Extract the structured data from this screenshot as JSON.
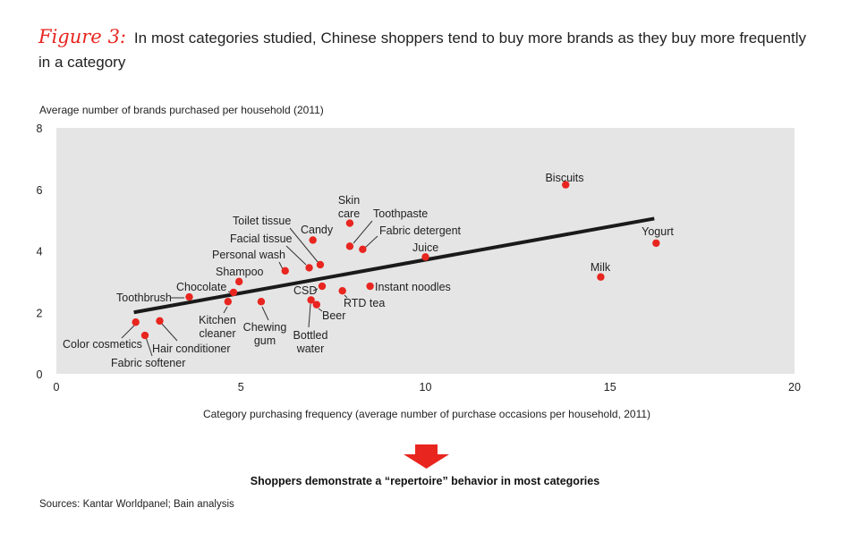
{
  "figure": {
    "label": "Figure 3:",
    "title": "In most categories studied, Chinese shoppers tend to buy more brands as they buy more frequently in a category"
  },
  "chart_data": {
    "type": "scatter",
    "ylabel": "Average number of brands purchased per household (2011)",
    "xlabel": "Category purchasing frequency (average number of purchase occasions per household, 2011)",
    "xlim": [
      0,
      20
    ],
    "ylim": [
      0,
      8
    ],
    "xticks": [
      "0",
      "5",
      "10",
      "15",
      "20"
    ],
    "yticks": [
      "0",
      "2",
      "4",
      "6",
      "8"
    ],
    "background_color": "#e5e5e5",
    "point_color": "#e8251f",
    "trendline": {
      "x": [
        2.1,
        16.2
      ],
      "y": [
        2.0,
        5.05
      ],
      "color": "#1a1a1a"
    },
    "points": [
      {
        "label": "Color cosmetics",
        "x": 2.15,
        "y": 1.68
      },
      {
        "label": "Fabric softener",
        "x": 2.4,
        "y": 1.25
      },
      {
        "label": "Hair conditioner",
        "x": 2.8,
        "y": 1.72
      },
      {
        "label": "Toothbrush",
        "x": 3.6,
        "y": 2.5
      },
      {
        "label": "Chocolate",
        "x": 4.8,
        "y": 2.65
      },
      {
        "label": "Shampoo",
        "x": 4.95,
        "y": 3.0
      },
      {
        "label": "Kitchen cleaner",
        "x": 4.65,
        "y": 2.35
      },
      {
        "label": "Chewing gum",
        "x": 5.55,
        "y": 2.35
      },
      {
        "label": "Personal wash",
        "x": 6.2,
        "y": 3.35
      },
      {
        "label": "Facial tissue",
        "x": 6.85,
        "y": 3.45
      },
      {
        "label": "Toilet tissue",
        "x": 7.15,
        "y": 3.55
      },
      {
        "label": "Candy",
        "x": 6.95,
        "y": 4.35
      },
      {
        "label": "Skin care",
        "x": 7.95,
        "y": 4.9
      },
      {
        "label": "Toothpaste",
        "x": 7.95,
        "y": 4.15
      },
      {
        "label": "Fabric detergent",
        "x": 8.3,
        "y": 4.05
      },
      {
        "label": "CSD",
        "x": 7.2,
        "y": 2.85
      },
      {
        "label": "RTD tea",
        "x": 7.75,
        "y": 2.7
      },
      {
        "label": "Beer",
        "x": 7.05,
        "y": 2.25
      },
      {
        "label": "Bottled water",
        "x": 6.9,
        "y": 2.4
      },
      {
        "label": "Instant noodles",
        "x": 8.5,
        "y": 2.85
      },
      {
        "label": "Juice",
        "x": 10.0,
        "y": 3.8
      },
      {
        "label": "Biscuits",
        "x": 13.8,
        "y": 6.15
      },
      {
        "label": "Yogurt",
        "x": 16.25,
        "y": 4.25
      },
      {
        "label": "Milk",
        "x": 14.75,
        "y": 3.15
      }
    ]
  },
  "conclusion": "Shoppers demonstrate a “repertoire” behavior in most categories",
  "source": "Sources: Kantar Worldpanel; Bain analysis"
}
